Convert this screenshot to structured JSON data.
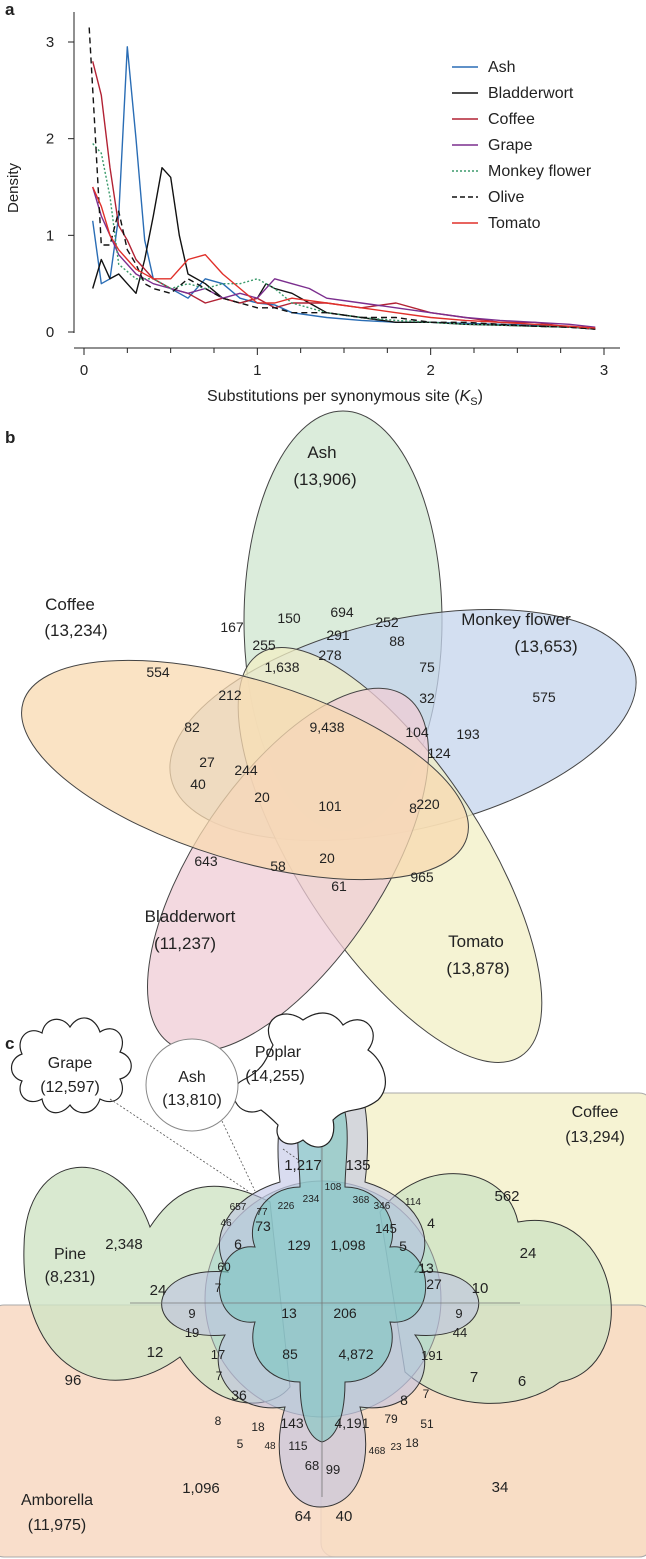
{
  "panels": {
    "a": "a",
    "b": "b",
    "c": "c"
  },
  "chart_data": [
    {
      "type": "line",
      "panel": "a",
      "xlabel_main": "Substitutions per synonymous site (",
      "xlabel_var": "K",
      "xlabel_sub": "S",
      "xlabel_close": ")",
      "ylabel": "Density",
      "xlim": [
        0,
        3
      ],
      "ylim": [
        0,
        3.2
      ],
      "xticks": [
        "0",
        "1",
        "2",
        "3"
      ],
      "yticks": [
        "0",
        "1",
        "2",
        "3"
      ],
      "legend_position": "top-right",
      "series": [
        {
          "name": "Ash",
          "color": "#2a6db5",
          "dash": "solid",
          "x": [
            0.05,
            0.1,
            0.15,
            0.2,
            0.25,
            0.3,
            0.35,
            0.4,
            0.5,
            0.6,
            0.7,
            0.8,
            0.9,
            1.0,
            1.1,
            1.2,
            1.4,
            1.6,
            1.8,
            2.0,
            2.2,
            2.4,
            2.6,
            2.8,
            2.95
          ],
          "y": [
            1.15,
            0.5,
            0.55,
            1.2,
            2.95,
            2.0,
            0.95,
            0.55,
            0.45,
            0.35,
            0.55,
            0.5,
            0.35,
            0.3,
            0.28,
            0.2,
            0.15,
            0.12,
            0.1,
            0.1,
            0.09,
            0.08,
            0.07,
            0.05,
            0.03
          ]
        },
        {
          "name": "Bladderwort",
          "color": "#111111",
          "dash": "solid",
          "x": [
            0.05,
            0.1,
            0.15,
            0.2,
            0.25,
            0.3,
            0.35,
            0.4,
            0.45,
            0.5,
            0.55,
            0.6,
            0.7,
            0.8,
            0.9,
            1.0,
            1.05,
            1.1,
            1.2,
            1.3,
            1.4,
            1.6,
            1.8,
            2.0,
            2.2,
            2.4,
            2.6,
            2.8,
            2.95
          ],
          "y": [
            0.45,
            0.75,
            0.55,
            0.6,
            0.5,
            0.4,
            0.75,
            1.2,
            1.7,
            1.6,
            1.0,
            0.6,
            0.5,
            0.35,
            0.3,
            0.35,
            0.5,
            0.45,
            0.4,
            0.3,
            0.2,
            0.15,
            0.1,
            0.1,
            0.08,
            0.07,
            0.06,
            0.05,
            0.03
          ]
        },
        {
          "name": "Coffee",
          "color": "#b22234",
          "dash": "solid",
          "x": [
            0.05,
            0.1,
            0.15,
            0.2,
            0.25,
            0.3,
            0.4,
            0.5,
            0.6,
            0.7,
            0.8,
            0.9,
            1.0,
            1.1,
            1.2,
            1.4,
            1.6,
            1.8,
            2.0,
            2.2,
            2.4,
            2.6,
            2.8,
            2.95
          ],
          "y": [
            2.8,
            2.45,
            1.7,
            1.1,
            0.95,
            0.75,
            0.55,
            0.45,
            0.4,
            0.3,
            0.35,
            0.3,
            0.35,
            0.25,
            0.3,
            0.3,
            0.25,
            0.3,
            0.2,
            0.15,
            0.1,
            0.1,
            0.05,
            0.03
          ]
        },
        {
          "name": "Grape",
          "color": "#7b2e8e",
          "dash": "solid",
          "x": [
            0.05,
            0.1,
            0.15,
            0.2,
            0.3,
            0.4,
            0.5,
            0.6,
            0.7,
            0.8,
            0.9,
            1.0,
            1.1,
            1.2,
            1.3,
            1.4,
            1.6,
            1.8,
            2.0,
            2.2,
            2.4,
            2.6,
            2.8,
            2.95
          ],
          "y": [
            1.5,
            1.2,
            1.0,
            0.8,
            0.6,
            0.5,
            0.45,
            0.4,
            0.45,
            0.35,
            0.4,
            0.35,
            0.55,
            0.5,
            0.45,
            0.35,
            0.3,
            0.25,
            0.2,
            0.15,
            0.12,
            0.1,
            0.08,
            0.05
          ]
        },
        {
          "name": "Monkey flower",
          "color": "#3a9a6b",
          "dash": "dot",
          "x": [
            0.05,
            0.1,
            0.15,
            0.2,
            0.3,
            0.4,
            0.5,
            0.6,
            0.7,
            0.8,
            0.9,
            1.0,
            1.1,
            1.2,
            1.4,
            1.6,
            1.8,
            2.0,
            2.2,
            2.4,
            2.6,
            2.8,
            2.95
          ],
          "y": [
            1.95,
            1.85,
            1.4,
            0.7,
            0.55,
            0.55,
            0.45,
            0.5,
            0.45,
            0.5,
            0.5,
            0.55,
            0.45,
            0.3,
            0.2,
            0.15,
            0.12,
            0.1,
            0.08,
            0.07,
            0.06,
            0.05,
            0.03
          ]
        },
        {
          "name": "Olive",
          "color": "#111111",
          "dash": "dash",
          "x": [
            0.03,
            0.06,
            0.1,
            0.15,
            0.2,
            0.25,
            0.3,
            0.35,
            0.4,
            0.5,
            0.6,
            0.7,
            0.8,
            0.9,
            1.0,
            1.1,
            1.2,
            1.4,
            1.6,
            1.8,
            2.0,
            2.2,
            2.4,
            2.6,
            2.8,
            2.95
          ],
          "y": [
            3.15,
            2.2,
            0.9,
            0.9,
            1.25,
            0.85,
            0.7,
            0.5,
            0.45,
            0.4,
            0.55,
            0.45,
            0.35,
            0.3,
            0.25,
            0.25,
            0.2,
            0.2,
            0.15,
            0.15,
            0.1,
            0.1,
            0.08,
            0.06,
            0.05,
            0.03
          ]
        },
        {
          "name": "Tomato",
          "color": "#e0302a",
          "dash": "solid",
          "x": [
            0.05,
            0.1,
            0.15,
            0.2,
            0.25,
            0.3,
            0.4,
            0.5,
            0.6,
            0.7,
            0.8,
            0.9,
            1.0,
            1.1,
            1.2,
            1.4,
            1.6,
            1.8,
            2.0,
            2.2,
            2.4,
            2.6,
            2.8,
            2.95
          ],
          "y": [
            1.5,
            1.3,
            1.0,
            0.85,
            0.75,
            0.65,
            0.55,
            0.55,
            0.75,
            0.8,
            0.6,
            0.45,
            0.3,
            0.3,
            0.35,
            0.3,
            0.25,
            0.2,
            0.15,
            0.12,
            0.1,
            0.08,
            0.06,
            0.04
          ]
        }
      ]
    },
    {
      "type": "venn",
      "panel": "b",
      "sets": [
        {
          "name": "Ash",
          "count": "(13,906)",
          "color": "#cfe6cf"
        },
        {
          "name": "Monkey flower",
          "count": "(13,653)",
          "color": "#c4d4ec"
        },
        {
          "name": "Tomato",
          "count": "(13,878)",
          "color": "#f2efc4"
        },
        {
          "name": "Bladderwort",
          "count": "(11,237)",
          "color": "#efccd6"
        },
        {
          "name": "Coffee",
          "count": "(13,234)",
          "color": "#f8d9b0"
        }
      ],
      "regions": [
        "694",
        "167",
        "150",
        "252",
        "291",
        "88",
        "255",
        "278",
        "1,638",
        "75",
        "554",
        "212",
        "32",
        "575",
        "82",
        "9,438",
        "104",
        "193",
        "124",
        "27",
        "244",
        "40",
        "20",
        "101",
        "8",
        "220",
        "643",
        "58",
        "20",
        "965",
        "61"
      ]
    },
    {
      "type": "venn",
      "panel": "c",
      "sets": [
        {
          "name": "Poplar",
          "count": "(14,255)",
          "color": "#c9c9e8"
        },
        {
          "name": "Grape",
          "count": "(12,597)",
          "color": "#ffffff"
        },
        {
          "name": "Ash",
          "count": "(13,810)",
          "color": "#ffffff"
        },
        {
          "name": "Coffee",
          "count": "(13,294)",
          "color": "#f6f3d3"
        },
        {
          "name": "Pine",
          "count": "(8,231)",
          "color": "#cfe4c4"
        },
        {
          "name": "Amborella",
          "count": "(11,975)",
          "color": "#f8d8c2"
        }
      ],
      "regions": [
        "1,217",
        "135",
        "108",
        "234",
        "368",
        "562",
        "226",
        "346",
        "114",
        "657",
        "77",
        "46",
        "73",
        "145",
        "4",
        "2,348",
        "6",
        "129",
        "1,098",
        "5",
        "24",
        "60",
        "13",
        "24",
        "7",
        "27",
        "10",
        "9",
        "13",
        "206",
        "9",
        "19",
        "44",
        "12",
        "85",
        "4,872",
        "17",
        "191",
        "7",
        "96",
        "7",
        "6",
        "7",
        "36",
        "8",
        "8",
        "143",
        "4,191",
        "79",
        "18",
        "51",
        "5",
        "48",
        "115",
        "468",
        "23",
        "18",
        "1,096",
        "68",
        "99",
        "34",
        "64",
        "40"
      ]
    }
  ]
}
